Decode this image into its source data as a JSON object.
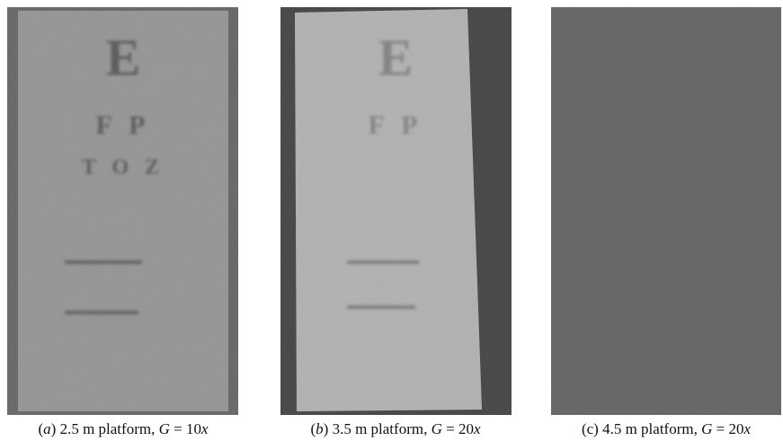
{
  "panels": [
    {
      "chart_lines": [
        "E",
        "F P",
        "T O Z"
      ],
      "caption": [
        {
          "text": "(",
          "italic": false
        },
        {
          "text": "a",
          "italic": true
        },
        {
          "text": ") 2.5 m platform, ",
          "italic": false
        },
        {
          "text": "G",
          "italic": true
        },
        {
          "text": " = 10",
          "italic": false
        },
        {
          "text": "x",
          "italic": true
        }
      ]
    },
    {
      "chart_lines": [
        "E",
        "F P"
      ],
      "caption": [
        {
          "text": "(",
          "italic": false
        },
        {
          "text": "b",
          "italic": true
        },
        {
          "text": ") 3.5 m platform, ",
          "italic": false
        },
        {
          "text": "G",
          "italic": true
        },
        {
          "text": " = 20",
          "italic": false
        },
        {
          "text": "x",
          "italic": true
        }
      ]
    },
    {
      "chart_lines": [],
      "caption": [
        {
          "text": "(c) 4.5 m platform, ",
          "italic": false
        },
        {
          "text": "G",
          "italic": true
        },
        {
          "text": " = 20",
          "italic": false
        },
        {
          "text": "x",
          "italic": true
        }
      ]
    }
  ]
}
